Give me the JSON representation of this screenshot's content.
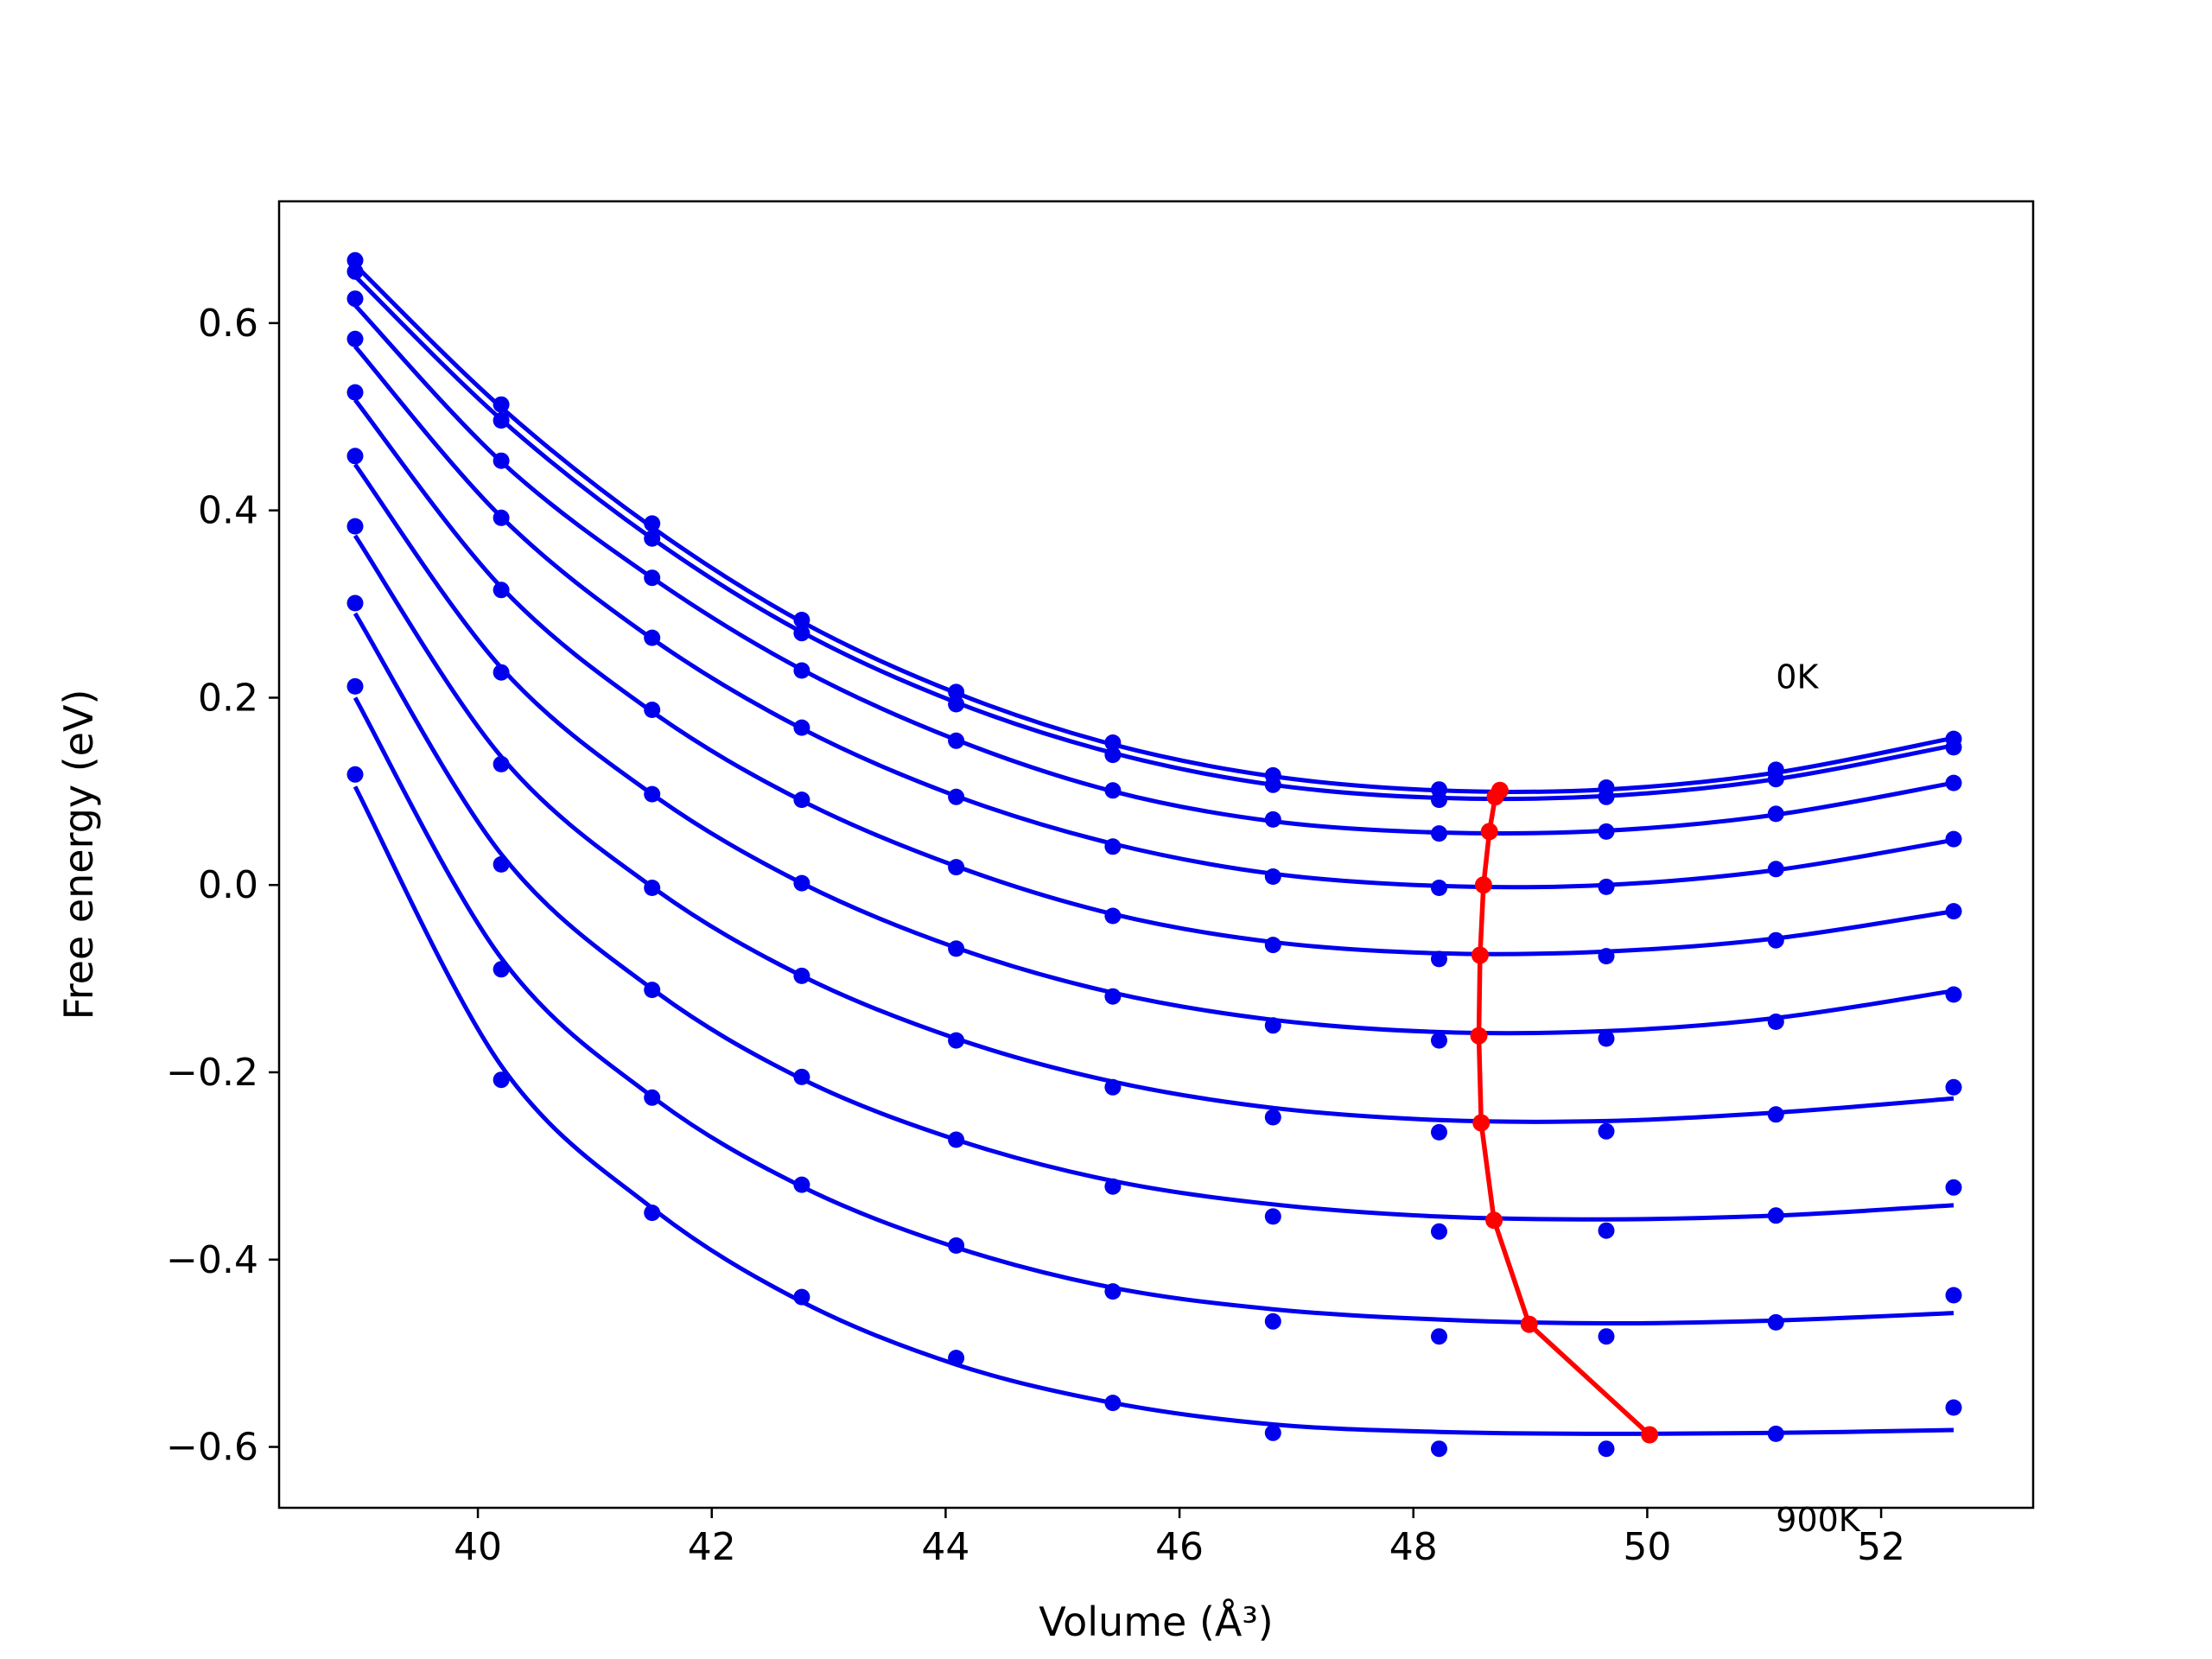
{
  "chart_data": {
    "type": "line",
    "xlabel": "Volume (Å³)",
    "ylabel": "Free energy (eV)",
    "xlim": [
      38.3,
      53.3
    ],
    "ylim": [
      -0.665,
      0.73
    ],
    "x_ticks": [
      40,
      42,
      44,
      46,
      48,
      50,
      52
    ],
    "y_ticks": [
      -0.6,
      -0.4,
      -0.2,
      0.0,
      0.2,
      0.4,
      0.6
    ],
    "x_tick_labels": [
      "40",
      "42",
      "44",
      "46",
      "48",
      "50",
      "52"
    ],
    "y_tick_labels": [
      "−0.6",
      "−0.4",
      "−0.2",
      "0.0",
      "0.2",
      "0.4",
      "0.6"
    ],
    "annotations": [
      {
        "text": "0K",
        "x": 51.1,
        "y": 0.21
      },
      {
        "text": "900K",
        "x": 51.1,
        "y": -0.69
      }
    ],
    "grid": false,
    "colors": {
      "data": "#0000ee",
      "minimum": "#ff0000"
    },
    "volumes": [
      38.95,
      40.2,
      41.49,
      42.77,
      44.09,
      45.43,
      46.8,
      48.22,
      49.65,
      51.1,
      52.62
    ],
    "series": [
      {
        "points": [
          0.667,
          0.513,
          0.386,
          0.283,
          0.206,
          0.152,
          0.117,
          0.102,
          0.104,
          0.123,
          0.156
        ],
        "fit": [
          0.662,
          0.51,
          0.382,
          0.281,
          0.205,
          0.15,
          0.116,
          0.101,
          0.102,
          0.12,
          0.157
        ]
      },
      {
        "points": [
          0.655,
          0.496,
          0.37,
          0.269,
          0.193,
          0.139,
          0.107,
          0.091,
          0.094,
          0.113,
          0.147
        ],
        "fit": [
          0.65,
          0.497,
          0.37,
          0.27,
          0.195,
          0.141,
          0.107,
          0.093,
          0.095,
          0.113,
          0.149
        ]
      },
      {
        "points": [
          0.626,
          0.453,
          0.328,
          0.229,
          0.154,
          0.101,
          0.07,
          0.055,
          0.057,
          0.076,
          0.109
        ],
        "fit": [
          0.619,
          0.452,
          0.328,
          0.23,
          0.155,
          0.1,
          0.068,
          0.056,
          0.058,
          0.075,
          0.109
        ]
      },
      {
        "points": [
          0.583,
          0.392,
          0.264,
          0.168,
          0.094,
          0.041,
          0.009,
          -0.003,
          -0.002,
          0.017,
          0.049
        ],
        "fit": [
          0.575,
          0.393,
          0.263,
          0.167,
          0.095,
          0.044,
          0.012,
          -0.001,
          0.0,
          0.016,
          0.048
        ]
      },
      {
        "points": [
          0.526,
          0.315,
          0.187,
          0.091,
          0.019,
          -0.033,
          -0.064,
          -0.079,
          -0.076,
          -0.059,
          -0.028
        ],
        "fit": [
          0.518,
          0.318,
          0.185,
          0.09,
          0.02,
          -0.031,
          -0.061,
          -0.073,
          -0.071,
          -0.057,
          -0.028
        ]
      },
      {
        "points": [
          0.458,
          0.227,
          0.097,
          0.002,
          -0.068,
          -0.119,
          -0.15,
          -0.166,
          -0.164,
          -0.146,
          -0.117
        ],
        "fit": [
          0.449,
          0.232,
          0.097,
          0.002,
          -0.067,
          -0.115,
          -0.144,
          -0.157,
          -0.156,
          -0.142,
          -0.113
        ]
      },
      {
        "points": [
          0.383,
          0.129,
          -0.003,
          -0.097,
          -0.166,
          -0.216,
          -0.248,
          -0.264,
          -0.263,
          -0.245,
          -0.216
        ],
        "fit": [
          0.373,
          0.137,
          -0.002,
          -0.097,
          -0.164,
          -0.21,
          -0.238,
          -0.251,
          -0.252,
          -0.243,
          -0.228
        ]
      },
      {
        "points": [
          0.301,
          0.022,
          -0.112,
          -0.205,
          -0.272,
          -0.322,
          -0.354,
          -0.37,
          -0.369,
          -0.353,
          -0.323
        ],
        "fit": [
          0.29,
          0.033,
          -0.111,
          -0.207,
          -0.272,
          -0.316,
          -0.341,
          -0.354,
          -0.357,
          -0.353,
          -0.342
        ]
      },
      {
        "points": [
          0.212,
          -0.09,
          -0.227,
          -0.32,
          -0.385,
          -0.434,
          -0.466,
          -0.482,
          -0.482,
          -0.467,
          -0.438
        ],
        "fit": [
          0.2,
          -0.078,
          -0.226,
          -0.322,
          -0.387,
          -0.43,
          -0.453,
          -0.464,
          -0.468,
          -0.465,
          -0.457
        ]
      },
      {
        "points": [
          0.118,
          -0.208,
          -0.35,
          -0.44,
          -0.505,
          -0.553,
          -0.585,
          -0.602,
          -0.602,
          -0.586,
          -0.558
        ],
        "fit": [
          0.105,
          -0.193,
          -0.345,
          -0.445,
          -0.512,
          -0.553,
          -0.576,
          -0.584,
          -0.586,
          -0.585,
          -0.582
        ]
      }
    ],
    "minimum_path": {
      "x": [
        48.74,
        48.7,
        48.65,
        48.6,
        48.57,
        48.56,
        48.58,
        48.69,
        48.99,
        50.02
      ],
      "y": [
        0.101,
        0.094,
        0.057,
        0.0,
        -0.075,
        -0.161,
        -0.254,
        -0.358,
        -0.469,
        -0.587
      ]
    }
  }
}
